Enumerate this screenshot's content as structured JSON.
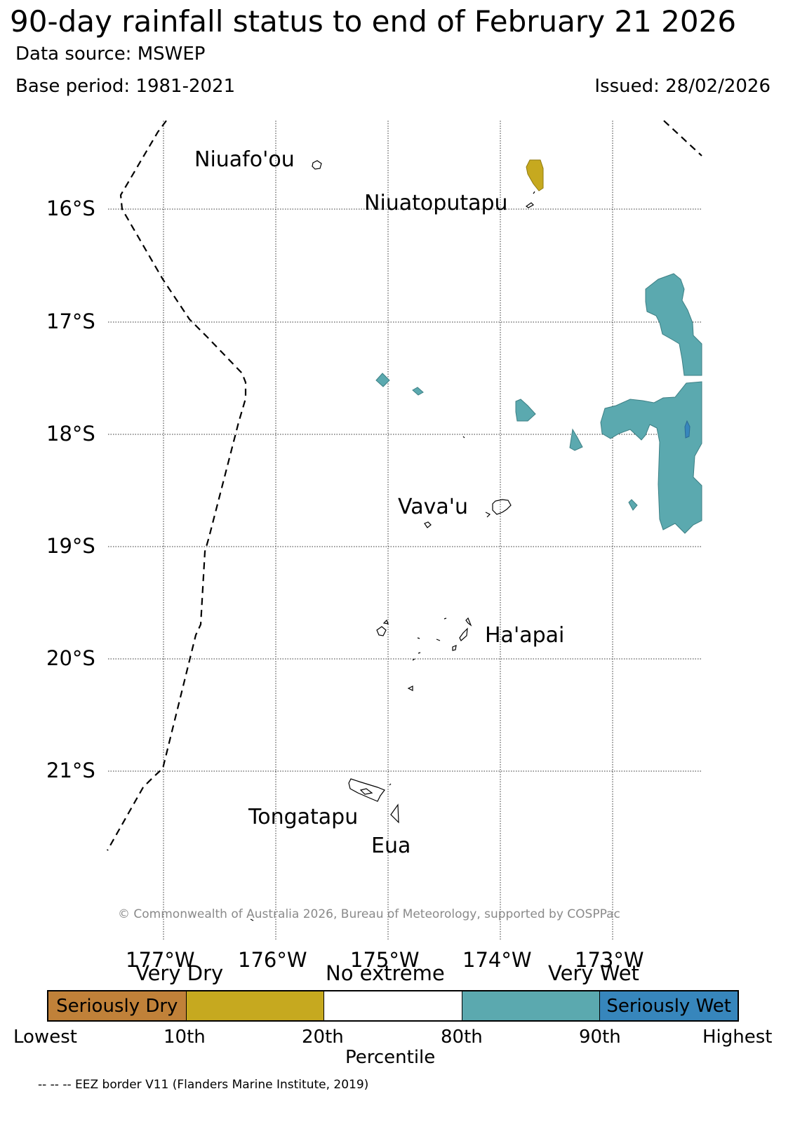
{
  "title": "90-day rainfall status to end of February 21 2026",
  "data_source": "Data source: MSWEP",
  "base_period": "Base period: 1981-2021",
  "issued": "Issued: 28/02/2026",
  "lat_labels": [
    "16°S",
    "17°S",
    "18°S",
    "19°S",
    "20°S",
    "21°S"
  ],
  "lon_labels": [
    "177°W",
    "176°W",
    "175°W",
    "174°W",
    "173°W"
  ],
  "places": {
    "niuafoou": "Niuafo'ou",
    "niuatoputapu": "Niuatoputapu",
    "vavau": "Vava'u",
    "haapai": "Ha'apai",
    "tongatapu": "Tongatapu",
    "eua": "Eua"
  },
  "copyright": "© Commonwealth of Australia 2026, Bureau of Meteorology, supported by COSPPac",
  "legend": {
    "top_labels": [
      "Very Dry",
      "No extreme",
      "Very Wet"
    ],
    "segments": [
      {
        "label": "Seriously Dry",
        "color": "#c08139"
      },
      {
        "label": "",
        "color": "#c6a91f"
      },
      {
        "label": "",
        "color": "#ffffff"
      },
      {
        "label": "",
        "color": "#5ba9af"
      },
      {
        "label": "Seriously Wet",
        "color": "#3786bc"
      }
    ],
    "bottom_labels": [
      "Lowest",
      "10th",
      "20th",
      "80th",
      "90th",
      "Highest"
    ],
    "axis_title": "Percentile"
  },
  "colors": {
    "very_wet": "#5ba9af",
    "seriously_wet": "#3786bc",
    "very_dry": "#c6a91f"
  },
  "footer": "-- -- -- EEZ border V11 (Flanders Marine Institute, 2019)"
}
